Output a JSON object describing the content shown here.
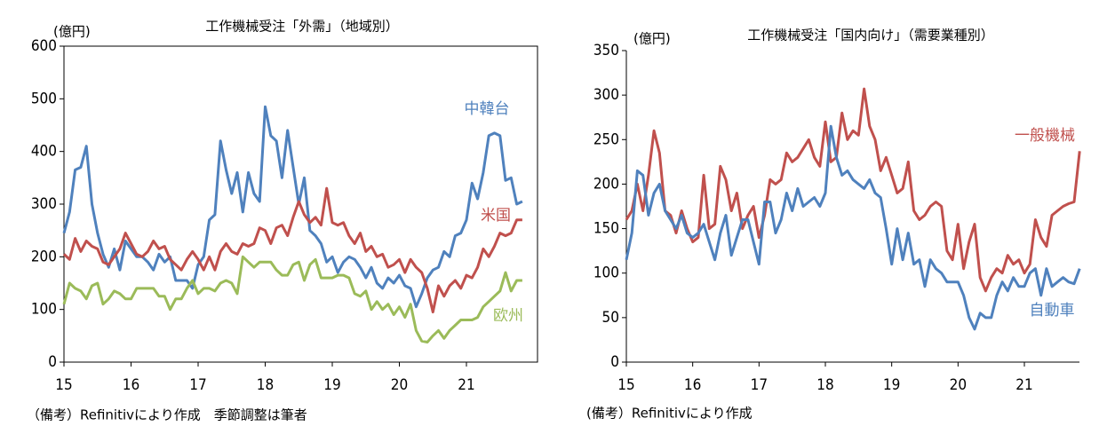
{
  "chart_data": [
    {
      "type": "line",
      "title": "工作機械受注「外需」（地域別）",
      "y_label": "(億円)",
      "note": "（備考）Refinitivにより作成　季節調整は筆者",
      "categories": [
        "15",
        null,
        null,
        null,
        null,
        null,
        null,
        null,
        null,
        null,
        null,
        null,
        "16",
        null,
        null,
        null,
        null,
        null,
        null,
        null,
        null,
        null,
        null,
        null,
        "17",
        null,
        null,
        null,
        null,
        null,
        null,
        null,
        null,
        null,
        null,
        null,
        "18",
        null,
        null,
        null,
        null,
        null,
        null,
        null,
        null,
        null,
        null,
        null,
        "19",
        null,
        null,
        null,
        null,
        null,
        null,
        null,
        null,
        null,
        null,
        null,
        "20",
        null,
        null,
        null,
        null,
        null,
        null,
        null,
        null,
        null,
        null,
        null,
        "21",
        null,
        null,
        null,
        null,
        null,
        null,
        null,
        null,
        null,
        null
      ],
      "ylim": [
        0,
        600
      ],
      "yticks": [
        0,
        100,
        200,
        300,
        400,
        500,
        600
      ],
      "frame": "box",
      "series": [
        {
          "name": "中韓台",
          "color": "#4f81bd",
          "values": [
            245,
            285,
            365,
            370,
            410,
            300,
            245,
            205,
            180,
            215,
            175,
            230,
            215,
            200,
            200,
            190,
            175,
            205,
            190,
            200,
            155,
            155,
            155,
            140,
            185,
            200,
            270,
            280,
            420,
            365,
            320,
            360,
            285,
            360,
            320,
            305,
            485,
            430,
            420,
            350,
            440,
            370,
            300,
            350,
            250,
            240,
            225,
            190,
            200,
            170,
            190,
            200,
            195,
            180,
            160,
            180,
            150,
            140,
            160,
            150,
            165,
            145,
            140,
            105,
            130,
            160,
            175,
            180,
            210,
            200,
            240,
            245,
            270,
            340,
            310,
            360,
            430,
            435,
            430,
            345,
            350,
            300,
            305
          ]
        },
        {
          "name": "米国",
          "color": "#c0504d",
          "values": [
            205,
            195,
            235,
            210,
            230,
            220,
            215,
            190,
            185,
            200,
            215,
            245,
            225,
            205,
            200,
            210,
            230,
            215,
            220,
            195,
            185,
            175,
            195,
            210,
            195,
            175,
            200,
            175,
            210,
            225,
            210,
            205,
            225,
            220,
            225,
            255,
            250,
            225,
            255,
            260,
            240,
            275,
            305,
            280,
            265,
            275,
            260,
            330,
            265,
            260,
            265,
            240,
            225,
            245,
            210,
            220,
            200,
            205,
            180,
            185,
            195,
            170,
            195,
            180,
            170,
            140,
            95,
            145,
            125,
            145,
            155,
            140,
            165,
            160,
            180,
            215,
            200,
            220,
            245,
            240,
            245,
            270,
            270
          ]
        },
        {
          "name": "欧州",
          "color": "#9bbb59",
          "values": [
            110,
            150,
            140,
            135,
            120,
            145,
            150,
            110,
            120,
            135,
            130,
            120,
            120,
            140,
            140,
            140,
            140,
            125,
            125,
            100,
            120,
            120,
            140,
            155,
            130,
            140,
            140,
            135,
            150,
            155,
            150,
            130,
            200,
            190,
            180,
            190,
            190,
            190,
            175,
            165,
            165,
            185,
            190,
            155,
            185,
            195,
            160,
            160,
            160,
            165,
            165,
            160,
            130,
            125,
            135,
            100,
            115,
            100,
            110,
            90,
            105,
            85,
            110,
            60,
            40,
            38,
            50,
            60,
            45,
            60,
            70,
            80,
            80,
            80,
            85,
            105,
            115,
            125,
            135,
            170,
            135,
            155,
            155
          ]
        }
      ]
    },
    {
      "type": "line",
      "title": "工作機械受注「国内向け」（需要業種別）",
      "y_label": "(億円)",
      "note": "(備考）Refinitivにより作成",
      "categories": [
        "15",
        null,
        null,
        null,
        null,
        null,
        null,
        null,
        null,
        null,
        null,
        null,
        "16",
        null,
        null,
        null,
        null,
        null,
        null,
        null,
        null,
        null,
        null,
        null,
        "17",
        null,
        null,
        null,
        null,
        null,
        null,
        null,
        null,
        null,
        null,
        null,
        "18",
        null,
        null,
        null,
        null,
        null,
        null,
        null,
        null,
        null,
        null,
        null,
        "19",
        null,
        null,
        null,
        null,
        null,
        null,
        null,
        null,
        null,
        null,
        null,
        "20",
        null,
        null,
        null,
        null,
        null,
        null,
        null,
        null,
        null,
        null,
        null,
        "21",
        null,
        null,
        null,
        null,
        null,
        null,
        null,
        null,
        null,
        null
      ],
      "ylim": [
        0,
        350
      ],
      "yticks": [
        0,
        50,
        100,
        150,
        200,
        250,
        300,
        350
      ],
      "frame": "axes",
      "series": [
        {
          "name": "一般機械",
          "color": "#c0504d",
          "values": [
            160,
            170,
            200,
            170,
            210,
            260,
            235,
            170,
            165,
            145,
            170,
            150,
            135,
            140,
            210,
            150,
            155,
            220,
            205,
            170,
            190,
            150,
            165,
            175,
            140,
            165,
            205,
            200,
            205,
            235,
            225,
            230,
            240,
            250,
            230,
            220,
            270,
            225,
            230,
            280,
            250,
            260,
            255,
            307,
            265,
            250,
            215,
            230,
            210,
            190,
            195,
            225,
            170,
            160,
            165,
            175,
            180,
            175,
            125,
            115,
            155,
            105,
            135,
            155,
            95,
            80,
            95,
            105,
            100,
            120,
            110,
            115,
            100,
            110,
            160,
            140,
            130,
            165,
            170,
            175,
            178,
            180,
            237
          ]
        },
        {
          "name": "自動車",
          "color": "#4f81bd",
          "values": [
            115,
            145,
            215,
            210,
            165,
            190,
            200,
            170,
            160,
            150,
            165,
            145,
            140,
            145,
            155,
            135,
            115,
            145,
            165,
            120,
            140,
            160,
            160,
            135,
            110,
            180,
            180,
            145,
            160,
            190,
            170,
            195,
            175,
            180,
            185,
            175,
            190,
            265,
            230,
            210,
            215,
            205,
            200,
            195,
            205,
            190,
            185,
            150,
            110,
            150,
            115,
            145,
            110,
            115,
            85,
            115,
            105,
            100,
            90,
            90,
            90,
            75,
            50,
            37,
            55,
            50,
            50,
            75,
            90,
            80,
            95,
            85,
            85,
            100,
            105,
            75,
            105,
            85,
            90,
            95,
            90,
            88,
            105
          ]
        }
      ]
    }
  ]
}
